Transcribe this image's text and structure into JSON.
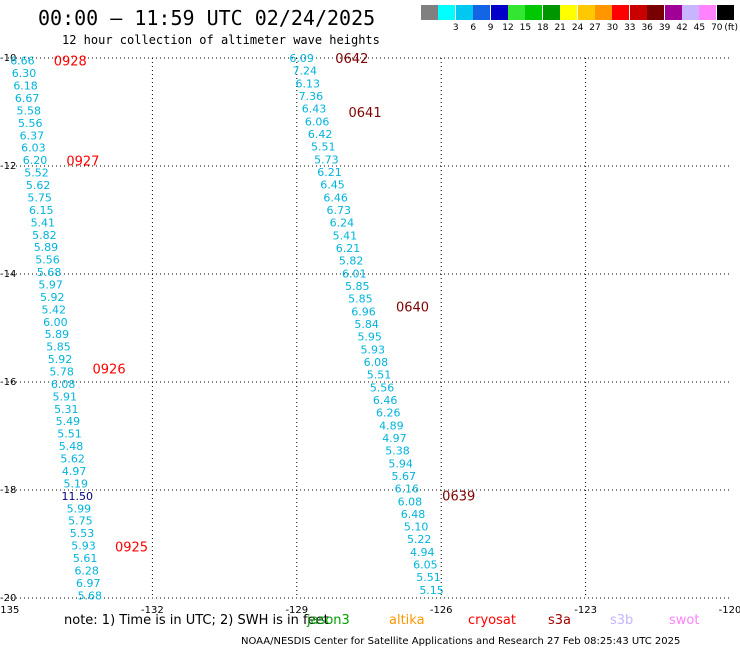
{
  "title": "00:00 – 11:59 UTC 02/24/2025",
  "subtitle": "12 hour collection of altimeter wave heights",
  "colorbar": {
    "unit": "(ft)",
    "bins": [
      {
        "label": "",
        "color": "#808080"
      },
      {
        "label": "3",
        "color": "#00ffff"
      },
      {
        "label": "6",
        "color": "#00c8f0"
      },
      {
        "label": "9",
        "color": "#1464e6"
      },
      {
        "label": "12",
        "color": "#0000c8"
      },
      {
        "label": "15",
        "color": "#32e632"
      },
      {
        "label": "18",
        "color": "#00c800"
      },
      {
        "label": "21",
        "color": "#009600"
      },
      {
        "label": "24",
        "color": "#ffff00"
      },
      {
        "label": "27",
        "color": "#ffc800"
      },
      {
        "label": "30",
        "color": "#ff9600"
      },
      {
        "label": "33",
        "color": "#ff0000"
      },
      {
        "label": "36",
        "color": "#c80000"
      },
      {
        "label": "39",
        "color": "#780000"
      },
      {
        "label": "42",
        "color": "#a00096"
      },
      {
        "label": "45",
        "color": "#c8b4ff"
      },
      {
        "label": "70",
        "color": "#ff82ff"
      },
      {
        "label": "",
        "color": "#000000"
      }
    ]
  },
  "axes": {
    "lon_ticks": [
      "-135",
      "-132",
      "-129",
      "-126",
      "-123",
      "-120"
    ],
    "lat_ticks": [
      "-10",
      "-12",
      "-14",
      "-16",
      "-18",
      "-20"
    ],
    "lon_range": [
      -135,
      -120
    ],
    "lat_range": [
      -20,
      -10
    ]
  },
  "tracks": [
    {
      "name": "west",
      "color": "#00b4dc",
      "label_color": "#ff0000",
      "lon_start": -134.7,
      "lon_end": -133.3,
      "lat_start": -10.05,
      "lat_end": -19.95,
      "values": [
        "6.66",
        "6.30",
        "6.18",
        "6.67",
        "5.58",
        "5.56",
        "6.37",
        "6.03",
        "6.20",
        "5.52",
        "5.62",
        "5.75",
        "6.15",
        "5.41",
        "5.82",
        "5.89",
        "5.56",
        "5.68",
        "5.97",
        "5.92",
        "5.42",
        "6.00",
        "5.89",
        "5.85",
        "5.92",
        "5.78",
        "6.08",
        "5.91",
        "5.31",
        "5.49",
        "5.51",
        "5.48",
        "5.62",
        "4.97",
        "5.19",
        "11.50",
        "5.99",
        "5.75",
        "5.53",
        "5.93",
        "5.61",
        "6.28",
        "6.97",
        "5.68"
      ],
      "time_labels": [
        {
          "text": "0928",
          "lat": -10.05,
          "dlon": 0.65
        },
        {
          "text": "0927",
          "lat": -11.9,
          "dlon": 0.65
        },
        {
          "text": "0926",
          "lat": -15.75,
          "dlon": 0.65
        },
        {
          "text": "0925",
          "lat": -19.05,
          "dlon": 0.65
        }
      ]
    },
    {
      "name": "east",
      "color": "#00b4dc",
      "label_color": "#800000",
      "lon_start": -128.9,
      "lon_end": -126.2,
      "lat_start": -10.0,
      "lat_end": -19.85,
      "values": [
        "6.09",
        "7.24",
        "6.13",
        "7.36",
        "6.43",
        "6.06",
        "6.42",
        "5.51",
        "5.73",
        "6.21",
        "6.45",
        "6.46",
        "6.73",
        "6.24",
        "5.41",
        "6.21",
        "5.82",
        "6.01",
        "5.85",
        "5.85",
        "6.96",
        "5.84",
        "5.95",
        "5.93",
        "6.08",
        "5.51",
        "5.56",
        "6.46",
        "6.26",
        "4.89",
        "4.97",
        "5.38",
        "5.94",
        "5.67",
        "6.16",
        "6.08",
        "6.48",
        "5.10",
        "5.22",
        "4.94",
        "6.05",
        "5.51",
        "5.15"
      ],
      "time_labels": [
        {
          "text": "0642",
          "lat": -10.0,
          "dlon": 0.7
        },
        {
          "text": "0641",
          "lat": -11.0,
          "dlon": 0.7
        },
        {
          "text": "0640",
          "lat": -14.6,
          "dlon": 0.7
        },
        {
          "text": "0639",
          "lat": -18.1,
          "dlon": 0.7
        }
      ]
    }
  ],
  "note": "note:  1) Time is in UTC; 2) SWH is in feet",
  "satellites": [
    {
      "name": "jason3",
      "color": "#00a000"
    },
    {
      "name": "altika",
      "color": "#ff9600"
    },
    {
      "name": "cryosat",
      "color": "#ff0000"
    },
    {
      "name": "s3a",
      "color": "#a00000"
    },
    {
      "name": "s3b",
      "color": "#c8b4ff"
    },
    {
      "name": "swot",
      "color": "#ff82ff"
    }
  ],
  "footer": "NOAA/NESDIS Center for Satellite Applications and Research     27 Feb 08:25:43 UTC 2025"
}
